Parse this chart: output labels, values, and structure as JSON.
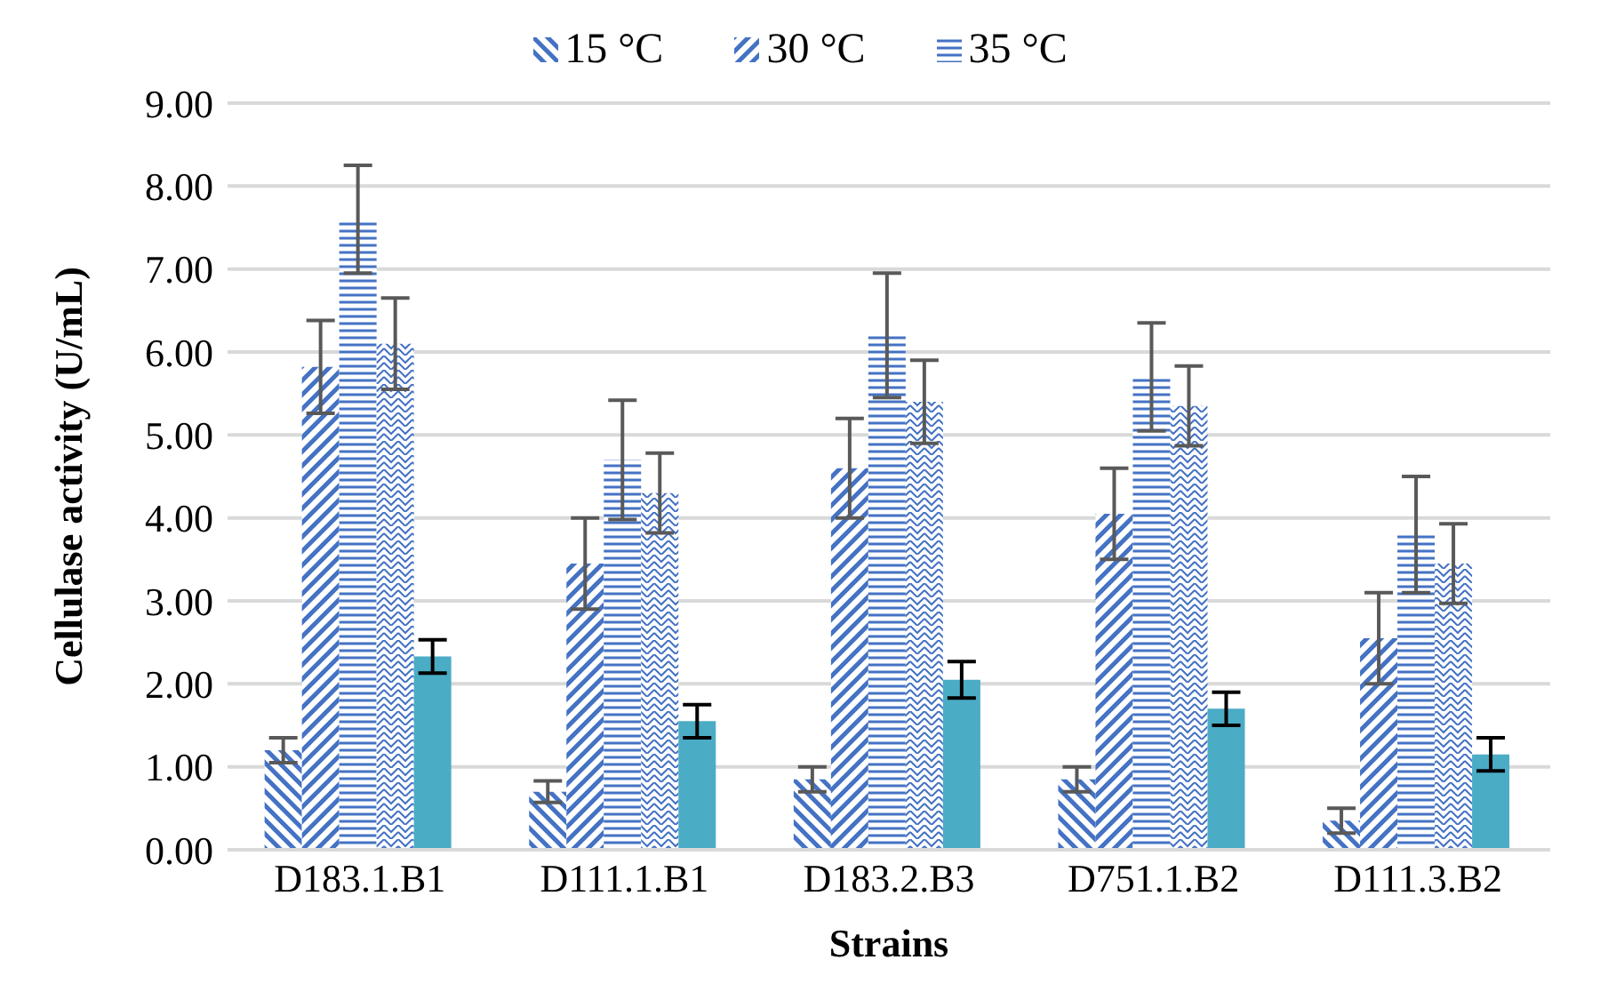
{
  "chart_data": {
    "type": "bar",
    "xlabel": "Strains",
    "ylabel": "Cellulase activity (U/mL)",
    "categories": [
      "D183.1.B1",
      "D111.1.B1",
      "D183.2.B3",
      "D751.1.B2",
      "D111.3.B2"
    ],
    "series": [
      {
        "name": "15 °C",
        "color": "#4472c4",
        "values": [
          1.2,
          0.7,
          0.85,
          0.85,
          0.35
        ],
        "errors": [
          0.15,
          0.13,
          0.15,
          0.15,
          0.15
        ]
      },
      {
        "name": "30 °C",
        "color": "#4472c4",
        "values": [
          5.82,
          3.45,
          4.6,
          4.05,
          2.55
        ],
        "errors": [
          0.56,
          0.55,
          0.6,
          0.55,
          0.55
        ]
      },
      {
        "name": "35 °C",
        "color": "#4472c4",
        "values": [
          7.6,
          4.7,
          6.2,
          5.7,
          3.8
        ],
        "errors": [
          0.65,
          0.72,
          0.75,
          0.65,
          0.7
        ]
      },
      {
        "color": "#4472c4",
        "values": [
          6.1,
          4.3,
          5.4,
          5.35,
          3.45
        ],
        "errors": [
          0.55,
          0.48,
          0.5,
          0.48,
          0.48
        ]
      },
      {
        "color": "#4bacc6",
        "values": [
          2.33,
          1.55,
          2.05,
          1.7,
          1.15
        ],
        "errors": [
          0.2,
          0.2,
          0.22,
          0.2,
          0.2
        ]
      }
    ],
    "ylim": [
      0,
      9
    ],
    "yticks": [
      {
        "value": 0,
        "label": "0.00"
      },
      {
        "value": 1,
        "label": "1.00"
      },
      {
        "value": 2,
        "label": "2.00"
      },
      {
        "value": 3,
        "label": "3.00"
      },
      {
        "value": 4,
        "label": "4.00"
      },
      {
        "value": 5,
        "label": "5.00"
      },
      {
        "value": 6,
        "label": "6.00"
      },
      {
        "value": 7,
        "label": "7.00"
      },
      {
        "value": 8,
        "label": "8.00"
      },
      {
        "value": 9,
        "label": "9.00"
      }
    ],
    "grid": "y",
    "legend": "top"
  }
}
